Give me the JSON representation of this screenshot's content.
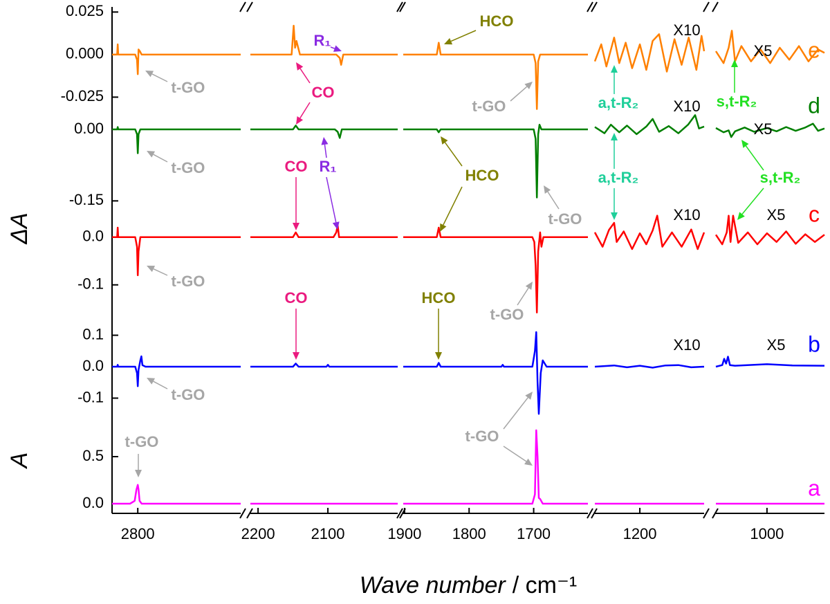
{
  "chart_data": {
    "type": "stacked-spectra",
    "xlabel": "Wave number",
    "xunit": "/ cm⁻¹",
    "ylabels": [
      "ΔA",
      "A"
    ],
    "x_segments": [
      {
        "xlim": [
          2900,
          2400
        ],
        "xticks": [
          2800
        ]
      },
      {
        "xlim": [
          2211,
          2000
        ],
        "xticks": [
          2200,
          2100
        ]
      },
      {
        "xlim": [
          1902,
          1616
        ],
        "xticks": [
          1900,
          1800,
          1700
        ]
      },
      {
        "xlim": [
          1270,
          1100
        ],
        "xticks": [
          1200
        ]
      },
      {
        "xlim": [
          1080,
          910
        ],
        "xticks": [
          1000
        ]
      }
    ],
    "series": [
      {
        "name": "a",
        "color": "#ff00ff",
        "ylim": [
          -0.103,
          0.831
        ],
        "yticks": [
          {
            "value": 0,
            "label": "0.0"
          },
          0.5
        ],
        "x": [
          2900,
          2830,
          2812,
          2805,
          2800,
          2797,
          2793,
          2785,
          2400,
          null,
          2211,
          2000,
          null,
          1902,
          1702,
          1698,
          1696,
          1694,
          1692,
          1690,
          1686,
          1616,
          null,
          1270,
          1100,
          null,
          1080,
          910
        ],
        "values": [
          0,
          0,
          0.03,
          0.15,
          0.2,
          0.15,
          0.03,
          0,
          0,
          null,
          0,
          0,
          null,
          0,
          0,
          0.1,
          0.78,
          0.5,
          0.06,
          0.05,
          0,
          0,
          null,
          0,
          0,
          null,
          0,
          0
        ]
      },
      {
        "name": "b",
        "color": "#0000ff",
        "ylim": [
          -0.187,
          0.154
        ],
        "yticks": [
          0.1,
          {
            "value": 0,
            "label": "0.0"
          },
          -0.1
        ],
        "multipliers": [
          "X10",
          "X5"
        ],
        "x": [
          2900,
          2880,
          2878,
          2876,
          2810,
          2803,
          2800,
          2797,
          2790,
          2786,
          2782,
          2770,
          2400,
          null,
          2211,
          2150,
          2146,
          2142,
          2102,
          2100,
          2098,
          2000,
          null,
          1902,
          1850,
          1847,
          1844,
          1750,
          1748,
          1746,
          1702,
          1698,
          1696,
          1694,
          1692,
          1689,
          1686,
          1680,
          1616,
          null,
          1270,
          1240,
          1220,
          1200,
          1180,
          1160,
          1140,
          1120,
          1100,
          null,
          1080,
          1070,
          1067,
          1064,
          1061,
          1058,
          1050,
          1000,
          960,
          910
        ],
        "values": [
          0,
          0,
          0.006,
          0,
          0,
          -0.02,
          -0.062,
          -0.01,
          0.02,
          0.033,
          0.005,
          0,
          0,
          null,
          0,
          0,
          0.01,
          0,
          0,
          0.006,
          0,
          0,
          null,
          0,
          0,
          0.012,
          0,
          0,
          0.006,
          0,
          0,
          0.05,
          0.11,
          -0.05,
          -0.15,
          -0.02,
          0.02,
          0,
          0,
          null,
          0,
          0.004,
          -0.002,
          0.003,
          -0.003,
          0.004,
          0.005,
          -0.002,
          0,
          null,
          0,
          0.005,
          0.025,
          0.01,
          0.032,
          0.005,
          0.003,
          0.008,
          0.004,
          0.003
        ]
      },
      {
        "name": "c",
        "color": "#ff0000",
        "ylim": [
          -0.17,
          0.062
        ],
        "yticks": [
          {
            "value": 0,
            "label": "0.0"
          },
          -0.1
        ],
        "multipliers": [
          "X10",
          "X5"
        ],
        "x": [
          2900,
          2880,
          2878,
          2876,
          2860,
          2810,
          2803,
          2800,
          2797,
          2790,
          2770,
          2400,
          null,
          2211,
          2150,
          2146,
          2142,
          2092,
          2088,
          2086,
          2084,
          2000,
          null,
          1902,
          1850,
          1847,
          1844,
          1702,
          1699,
          1697,
          1695,
          1693,
          1690,
          1688,
          1685,
          1616,
          null,
          1270,
          1258,
          1248,
          1240,
          1236,
          1225,
          1212,
          1200,
          1190,
          1180,
          1173,
          1165,
          1150,
          1135,
          1120,
          1110,
          1100,
          null,
          1080,
          1070,
          1063,
          1060,
          1057,
          1053,
          1045,
          1030,
          1015,
          1000,
          985,
          970,
          955,
          940,
          925,
          910
        ],
        "values": [
          0,
          0,
          0.02,
          0,
          0,
          0,
          -0.02,
          -0.08,
          -0.03,
          0,
          0,
          0,
          null,
          0,
          0,
          0.01,
          0,
          0,
          0.01,
          0.025,
          0,
          0,
          null,
          0,
          0,
          0.02,
          0,
          0,
          -0.01,
          -0.06,
          -0.158,
          -0.03,
          0.01,
          -0.02,
          0,
          0,
          null,
          0.01,
          -0.02,
          0.015,
          0.03,
          -0.01,
          0.012,
          -0.025,
          0.008,
          -0.015,
          0.014,
          0.045,
          -0.02,
          0.01,
          -0.02,
          0.016,
          -0.025,
          0.01,
          null,
          0.005,
          -0.015,
          0.01,
          0.045,
          -0.01,
          0.045,
          -0.012,
          0.01,
          -0.015,
          0.008,
          -0.01,
          0.012,
          -0.014,
          0.006,
          -0.01,
          0.005
        ]
      },
      {
        "name": "d",
        "color": "#007f00",
        "ylim": [
          -0.164,
          0.032
        ],
        "yticks": [
          {
            "value": 0,
            "label": "0.00"
          },
          -0.15
        ],
        "multipliers": [
          "X10",
          "X5"
        ],
        "x": [
          2900,
          2880,
          2878,
          2876,
          2810,
          2803,
          2800,
          2797,
          2790,
          2400,
          null,
          2211,
          2150,
          2146,
          2142,
          2090,
          2086,
          2083,
          2080,
          2000,
          null,
          1902,
          1850,
          1847,
          1844,
          1700,
          1697,
          1695,
          1693,
          1691,
          1688,
          1616,
          null,
          1270,
          1255,
          1245,
          1232,
          1220,
          1205,
          1190,
          1180,
          1170,
          1155,
          1140,
          1125,
          1114,
          1108,
          1100,
          null,
          1080,
          1068,
          1060,
          1056,
          1050,
          1035,
          1020,
          1000,
          985,
          970,
          955,
          940,
          928,
          920,
          910
        ],
        "values": [
          0,
          0,
          0.005,
          0,
          0,
          -0.01,
          -0.05,
          -0.01,
          0,
          0,
          null,
          0,
          0,
          0.008,
          0,
          0,
          -0.005,
          -0.018,
          0,
          0,
          null,
          0,
          0,
          -0.006,
          0,
          0,
          -0.02,
          -0.143,
          -0.01,
          0.01,
          0,
          0,
          null,
          0.005,
          -0.008,
          0.01,
          -0.006,
          0.008,
          -0.01,
          0.006,
          0.022,
          -0.005,
          0.007,
          -0.008,
          0.01,
          0.03,
          0.002,
          0.006,
          null,
          0.003,
          -0.006,
          -0.002,
          -0.016,
          -0.004,
          0.004,
          -0.005,
          0.003,
          -0.004,
          0.005,
          -0.003,
          0.004,
          0.012,
          -0.003,
          0.002
        ]
      },
      {
        "name": "e",
        "color": "#ff8000",
        "ylim": [
          -0.035,
          0.028
        ],
        "yticks": [
          0.025,
          {
            "value": 0,
            "label": "0.000"
          },
          -0.025
        ],
        "multipliers": [
          "X10",
          "X5"
        ],
        "x": [
          2900,
          2880,
          2878,
          2876,
          2810,
          2803,
          2800,
          2797,
          2792,
          2785,
          2400,
          null,
          2211,
          2152,
          2149,
          2147,
          2145,
          2140,
          2088,
          2083,
          2081,
          2078,
          2000,
          null,
          1902,
          1850,
          1847,
          1844,
          1700,
          1697,
          1695,
          1693,
          1690,
          1616,
          null,
          1270,
          1260,
          1252,
          1240,
          1232,
          1222,
          1212,
          1200,
          1190,
          1180,
          1170,
          1158,
          1146,
          1135,
          1124,
          1112,
          1104,
          1100,
          null,
          1080,
          1068,
          1060,
          1055,
          1050,
          1040,
          1025,
          1010,
          995,
          980,
          965,
          950,
          935,
          920,
          910
        ],
        "values": [
          0,
          0,
          0.006,
          0,
          0,
          -0.003,
          -0.0115,
          0.003,
          0.002,
          0,
          0,
          null,
          0,
          0,
          0.017,
          0.004,
          0.008,
          0,
          0,
          -0.002,
          -0.006,
          0,
          0,
          null,
          0,
          0,
          0.007,
          0,
          0,
          -0.005,
          -0.032,
          -0.004,
          0,
          0,
          null,
          -0.004,
          0.006,
          -0.007,
          0.01,
          -0.005,
          0.007,
          -0.008,
          0.006,
          -0.009,
          0.008,
          0.012,
          -0.01,
          0.009,
          -0.006,
          0.01,
          -0.009,
          0.011,
          0.002,
          null,
          0.002,
          -0.005,
          0.004,
          0.014,
          -0.004,
          0.005,
          -0.004,
          0.003,
          -0.005,
          0.004,
          -0.003,
          0.005,
          -0.004,
          0.003,
          0.001
        ]
      }
    ],
    "annotations": [
      {
        "text": "t-GO",
        "color": "#a6a6a6"
      },
      {
        "text": "t-GO",
        "color": "#a6a6a6"
      },
      {
        "text": "t-GO",
        "color": "#a6a6a6"
      },
      {
        "text": "CO",
        "color": "#ea1a7f"
      },
      {
        "text": "HCO",
        "color": "#808000"
      },
      {
        "text": "t-GO",
        "color": "#a6a6a6"
      },
      {
        "text": "t-GO",
        "color": "#a6a6a6"
      },
      {
        "text": "t-GO",
        "color": "#a6a6a6"
      },
      {
        "text": "CO",
        "color": "#ea1a7f"
      },
      {
        "text": "R₁",
        "color": "#8a2be2"
      },
      {
        "text": "HCO",
        "color": "#808000"
      },
      {
        "text": "t-GO",
        "color": "#a6a6a6"
      },
      {
        "text": "CO",
        "color": "#ea1a7f"
      },
      {
        "text": "t-GO",
        "color": "#a6a6a6"
      },
      {
        "text": "t-GO",
        "color": "#a6a6a6"
      },
      {
        "text": "R₁",
        "color": "#8a2be2"
      },
      {
        "text": "HCO",
        "color": "#808000"
      },
      {
        "text": "a,t-R₂",
        "color": "#1fcf9a"
      },
      {
        "text": "a,t-R₂",
        "color": "#1fcf9a"
      },
      {
        "text": "s,t-R₂",
        "color": "#22e022"
      },
      {
        "text": "s,t-R₂",
        "color": "#22e022"
      }
    ]
  }
}
